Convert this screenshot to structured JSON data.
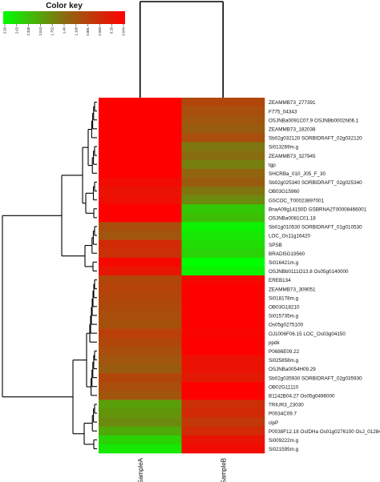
{
  "chart_data": {
    "type": "heatmap",
    "title": "",
    "color_key": {
      "title": "Color key",
      "ticks": [
        "2.93",
        "2.63",
        "2.338",
        "2.043",
        "1.752",
        "1.46",
        "1.168",
        "0.881",
        "0.583",
        "0.29",
        "0.044"
      ],
      "low_color": "#00ff00",
      "mid_color": "#8a6a10",
      "high_color": "#ff0000"
    },
    "columns": [
      "SampleA",
      "SampleB"
    ],
    "rows": [
      "ZEAMMB73_277391",
      "F775_04343",
      "OSJNBa0091C07.9 OSJNBb0002N06.1",
      "ZEAMMB73_182038",
      "Sb02g032120 SORBIDRAFT_02g032120",
      "Si013269m.g",
      "ZEAMMB73_327945",
      "tgp",
      "SHCRBa_010_J05_F_30",
      "Sb02g025340 SORBIDRAFT_02g025340",
      "OB03G15960",
      "GSCOC_T00023897001",
      "BnaA09g14150D GSBRNA2T00008466001",
      "OSJNBa0081C01.18",
      "Sb01g010530 SORBIDRAFT_01g010530",
      "LOC_Os11g16420",
      "SPSB",
      "BRADI5G19560",
      "Si016421m.g",
      "OSJNBb0111O13.8 Os05g0140000",
      "EREB134",
      "ZEAMMB73_309051",
      "Si018178m.g",
      "OB03G18210",
      "Si015735m.g",
      "Os05g0275100",
      "OJ1006F06.15 LOC_Os03g04150",
      "ppdk",
      "P0686E09.22",
      "Si025858m.g",
      "OSJNBa0054H09.29",
      "Sb02g035930 SORBIDRAFT_02g035930",
      "OB02G11110",
      "B1142B04.27 Os05g0496000",
      "TRIUR3_23030",
      "P0034C09.7",
      "clpP",
      "P0038F12.18 OsIDHa Os01g0276100 OsJ_01284",
      "Si009222m.g",
      "Si021595m.g"
    ],
    "values": [
      [
        0.044,
        1.0
      ],
      [
        0.044,
        1.1
      ],
      [
        0.044,
        1.2
      ],
      [
        0.044,
        1.3
      ],
      [
        0.044,
        1.1
      ],
      [
        0.044,
        1.6
      ],
      [
        0.044,
        1.5
      ],
      [
        0.044,
        1.7
      ],
      [
        0.044,
        1.4
      ],
      [
        0.2,
        1.3
      ],
      [
        0.3,
        1.6
      ],
      [
        0.25,
        1.8
      ],
      [
        0.044,
        2.4
      ],
      [
        0.044,
        2.3
      ],
      [
        1.1,
        2.8
      ],
      [
        1.2,
        2.7
      ],
      [
        0.6,
        2.6
      ],
      [
        0.7,
        2.5
      ],
      [
        0.15,
        2.93
      ],
      [
        0.35,
        2.8
      ],
      [
        1.0,
        0.15
      ],
      [
        0.95,
        0.044
      ],
      [
        1.0,
        0.044
      ],
      [
        1.05,
        0.044
      ],
      [
        1.1,
        0.044
      ],
      [
        1.15,
        0.044
      ],
      [
        0.9,
        0.1
      ],
      [
        1.0,
        0.044
      ],
      [
        1.1,
        0.044
      ],
      [
        1.2,
        0.3
      ],
      [
        1.3,
        0.3
      ],
      [
        1.0,
        0.4
      ],
      [
        1.1,
        0.044
      ],
      [
        1.2,
        0.044
      ],
      [
        2.0,
        0.7
      ],
      [
        1.9,
        0.6
      ],
      [
        1.8,
        0.8
      ],
      [
        2.1,
        0.6
      ],
      [
        2.5,
        0.3
      ],
      [
        2.7,
        0.2
      ]
    ]
  }
}
